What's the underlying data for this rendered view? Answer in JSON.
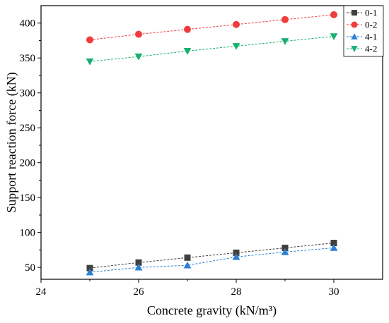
{
  "chart_data": {
    "type": "line",
    "title": "",
    "xlabel": "Concrete gravity (kN/m³)",
    "ylabel": "Support reaction force (kN)",
    "xlim": [
      24,
      31
    ],
    "ylim": [
      33,
      425
    ],
    "xticks": [
      24,
      26,
      28,
      30
    ],
    "yticks": [
      50,
      100,
      150,
      200,
      250,
      300,
      350,
      400
    ],
    "grid": false,
    "legend_position": "top-right",
    "x": [
      25,
      26,
      27,
      28,
      29,
      30
    ],
    "series": [
      {
        "name": "0-1",
        "color": "#404040",
        "marker": "square",
        "values": [
          49,
          57,
          64,
          71,
          78,
          85
        ]
      },
      {
        "name": "0-2",
        "color": "#f03c3c",
        "marker": "circle",
        "values": [
          376,
          384,
          391,
          398,
          405,
          412
        ]
      },
      {
        "name": "4-1",
        "color": "#2c7fd6",
        "marker": "triangle-up",
        "values": [
          43,
          50,
          53,
          65,
          72,
          78
        ]
      },
      {
        "name": "4-2",
        "color": "#18b070",
        "marker": "triangle-down",
        "values": [
          345,
          352,
          360,
          367,
          374,
          381
        ]
      }
    ]
  }
}
